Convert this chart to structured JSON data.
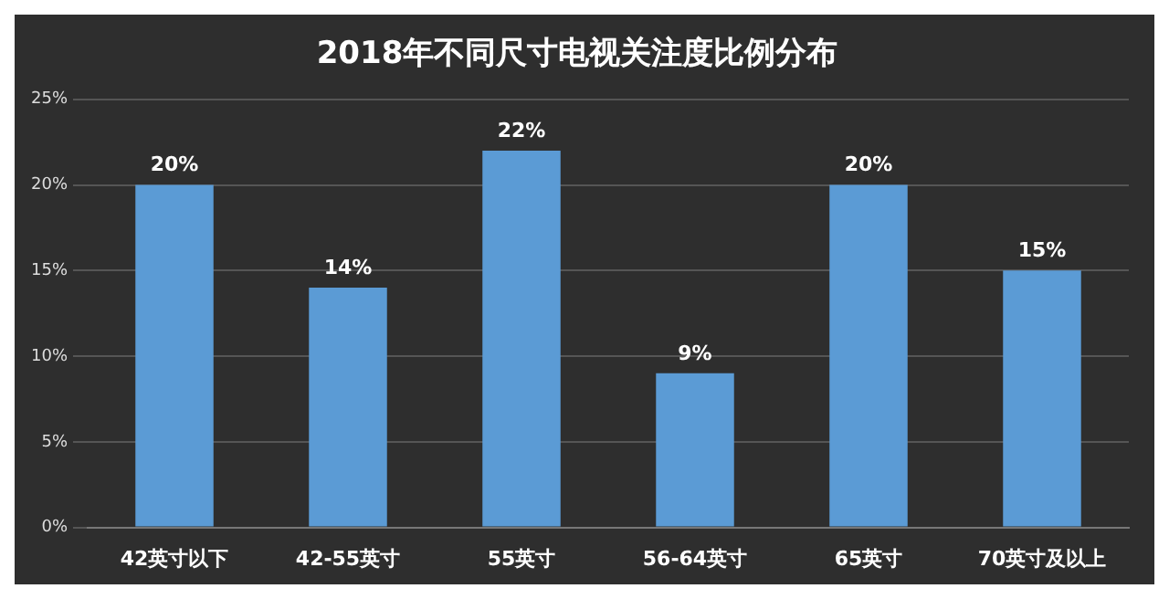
{
  "chart_data": {
    "type": "bar",
    "title": "2018年不同尺寸电视关注度比例分布",
    "categories": [
      "42英寸以下",
      "42-55英寸",
      "55英寸",
      "56-64英寸",
      "65英寸",
      "70英寸及以上"
    ],
    "values": [
      20,
      14,
      22,
      9,
      20,
      15
    ],
    "value_labels": [
      "20%",
      "14%",
      "22%",
      "9%",
      "20%",
      "15%"
    ],
    "color": "#5b9bd5",
    "ylim": [
      0,
      25
    ],
    "yticks": [
      {
        "value": 0,
        "label": "0%"
      },
      {
        "value": 5,
        "label": "5%"
      },
      {
        "value": 10,
        "label": "10%"
      },
      {
        "value": 15,
        "label": "15%"
      },
      {
        "value": 20,
        "label": "20%"
      },
      {
        "value": 25,
        "label": "25%"
      }
    ],
    "grid": "y",
    "legend": false
  }
}
